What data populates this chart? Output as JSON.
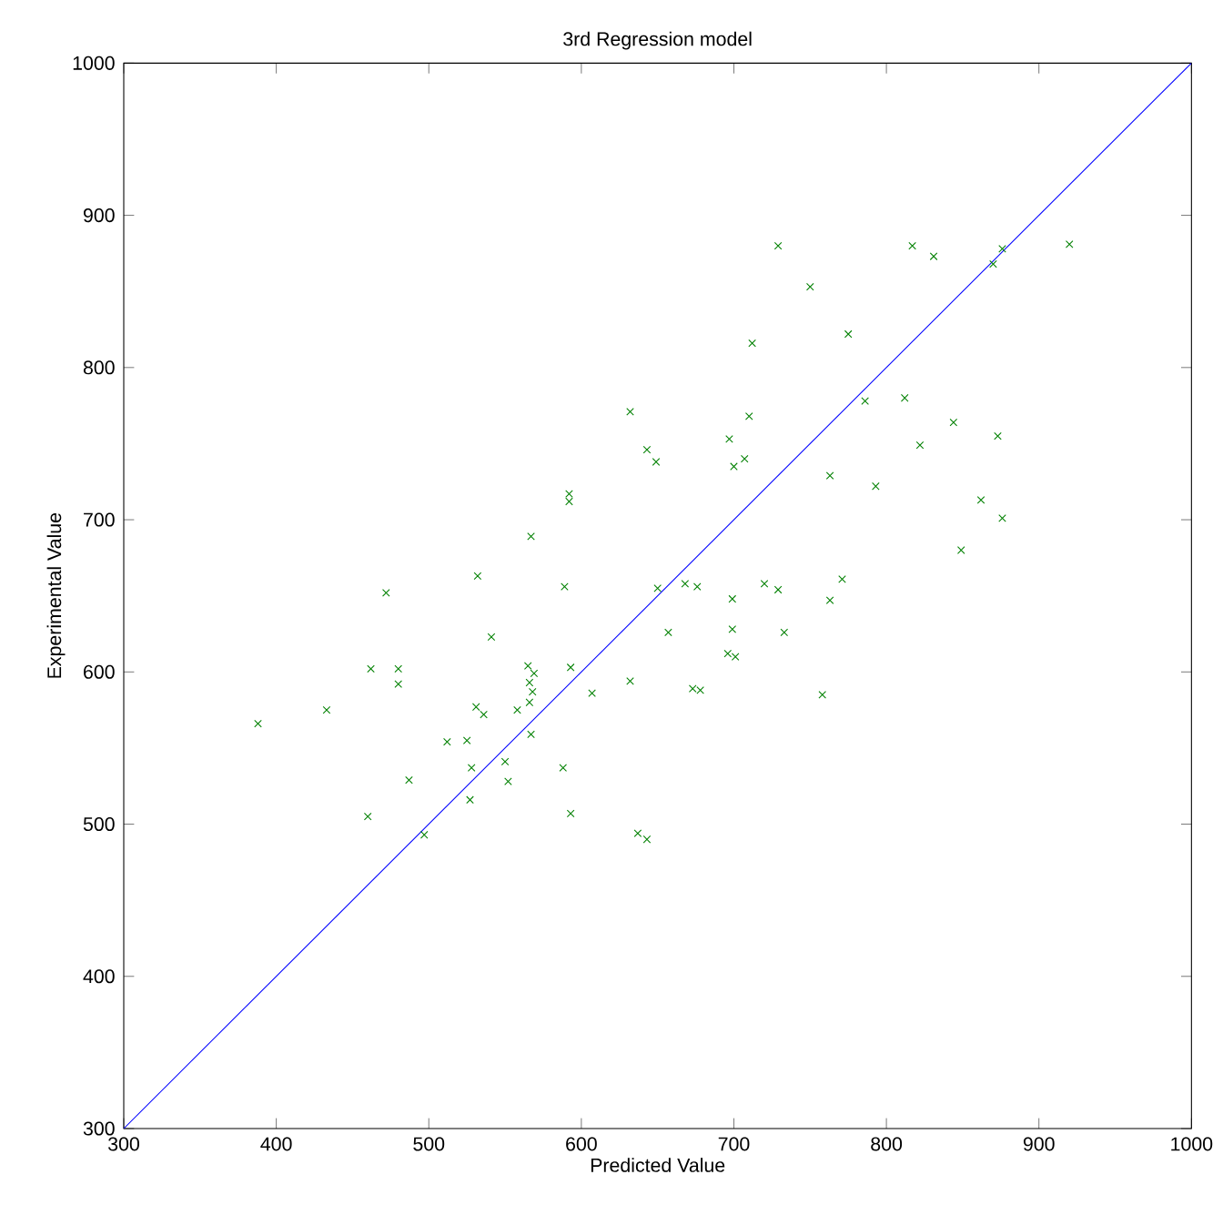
{
  "chart_data": {
    "type": "scatter",
    "title": "3rd Regression model",
    "xlabel": "Predicted Value",
    "ylabel": "Experimental Value",
    "xlim": [
      300,
      1000
    ],
    "ylim": [
      300,
      1000
    ],
    "xticks": [
      300,
      400,
      500,
      600,
      700,
      800,
      900,
      1000
    ],
    "yticks": [
      300,
      400,
      500,
      600,
      700,
      800,
      900,
      1000
    ],
    "grid": false,
    "series": [
      {
        "color": "#008000",
        "marker": "cross",
        "x": [
          388,
          433,
          460,
          462,
          472,
          480,
          480,
          487,
          497,
          512,
          525,
          527,
          528,
          531,
          532,
          536,
          541,
          550,
          552,
          558,
          565,
          566,
          566,
          567,
          567,
          568,
          569,
          588,
          589,
          592,
          592,
          593,
          593,
          607,
          632,
          632,
          637,
          643,
          643,
          649,
          650,
          657,
          668,
          673,
          676,
          678,
          696,
          697,
          699,
          699,
          700,
          701,
          707,
          710,
          712,
          720,
          729,
          729,
          733,
          750,
          758,
          763,
          763,
          771,
          775,
          786,
          793,
          812,
          817,
          822,
          831,
          844,
          849,
          862,
          870,
          873,
          876,
          876,
          920
        ],
        "values": [
          566,
          575,
          505,
          602,
          652,
          602,
          592,
          529,
          493,
          554,
          555,
          516,
          537,
          577,
          663,
          572,
          623,
          541,
          528,
          575,
          604,
          593,
          580,
          689,
          559,
          587,
          599,
          537,
          656,
          717,
          712,
          603,
          507,
          586,
          594,
          771,
          494,
          746,
          490,
          738,
          655,
          626,
          658,
          589,
          656,
          588,
          612,
          753,
          648,
          628,
          735,
          610,
          740,
          768,
          816,
          658,
          880,
          654,
          626,
          853,
          585,
          729,
          647,
          661,
          822,
          778,
          722,
          780,
          880,
          749,
          873,
          764,
          680,
          713,
          868,
          755,
          701,
          878,
          881
        ]
      },
      {
        "type": "line",
        "color": "#0000ff",
        "marker": "none",
        "line_style": "solid",
        "x": [
          300,
          1000
        ],
        "values": [
          300,
          1000
        ]
      }
    ]
  }
}
